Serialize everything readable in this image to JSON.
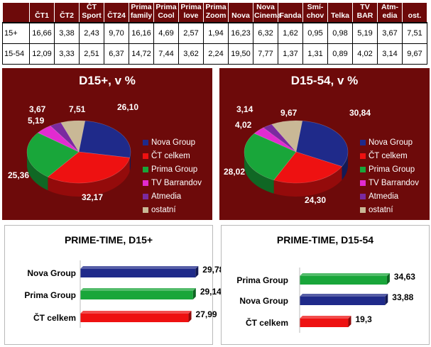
{
  "table": {
    "columns": [
      "ČT1",
      "ČT2",
      "ČT Sport",
      "ČT24",
      "Prima family",
      "Prima Cool",
      "Prima love",
      "Prima Zoom",
      "Nova",
      "Nova Cinema",
      "Fanda",
      "Smí-chov",
      "Telka",
      "TV BAR",
      "Atm-edia",
      "ost."
    ],
    "column_lines": [
      [
        "ČT1"
      ],
      [
        "ČT2"
      ],
      [
        "ČT",
        "Sport"
      ],
      [
        "ČT24"
      ],
      [
        "Prima",
        "family"
      ],
      [
        "Prima",
        "Cool"
      ],
      [
        "Prima",
        "love"
      ],
      [
        "Prima",
        "Zoom"
      ],
      [
        "Nova"
      ],
      [
        "Nova",
        "Cinema"
      ],
      [
        "Fanda"
      ],
      [
        "Smí-",
        "chov"
      ],
      [
        "Telka"
      ],
      [
        "TV",
        "BAR"
      ],
      [
        "Atm-",
        "edia"
      ],
      [
        "ost."
      ]
    ],
    "rows": [
      {
        "label": "15+",
        "values": [
          "16,66",
          "3,38",
          "2,43",
          "9,70",
          "16,16",
          "4,69",
          "2,57",
          "1,94",
          "16,23",
          "6,32",
          "1,62",
          "0,95",
          "0,98",
          "5,19",
          "3,67",
          "7,51"
        ]
      },
      {
        "label": "15-54",
        "values": [
          "12,09",
          "3,33",
          "2,51",
          "6,37",
          "14,72",
          "7,44",
          "3,62",
          "2,24",
          "19,50",
          "7,77",
          "1,37",
          "1,31",
          "0,89",
          "4,02",
          "3,14",
          "9,67"
        ]
      }
    ]
  },
  "colors": {
    "panel_bg": "#6d0a0a",
    "nova": "#1f2a8a",
    "ct": "#ee1111",
    "prima": "#19a63a",
    "barrandov": "#e22bd0",
    "atmedia": "#7a2aa0",
    "ostatni": "#c9b896"
  },
  "chart_data": [
    {
      "type": "pie",
      "title": "D15+, v %",
      "legend": [
        "Nova Group",
        "ČT celkem",
        "Prima Group",
        "TV Barrandov",
        "Atmedia",
        "ostatní"
      ],
      "legend_position": "right",
      "slices": [
        {
          "name": "Nova Group",
          "value": 26.1,
          "label": "26,10"
        },
        {
          "name": "ČT celkem",
          "value": 32.17,
          "label": "32,17"
        },
        {
          "name": "Prima Group",
          "value": 25.36,
          "label": "25,36"
        },
        {
          "name": "TV Barrandov",
          "value": 5.19,
          "label": "5,19"
        },
        {
          "name": "Atmedia",
          "value": 3.67,
          "label": "3,67"
        },
        {
          "name": "ostatní",
          "value": 7.51,
          "label": "7,51"
        }
      ]
    },
    {
      "type": "pie",
      "title": "D15-54, v %",
      "legend": [
        "Nova Group",
        "ČT celkem",
        "Prima Group",
        "TV Barrandov",
        "Atmedia",
        "ostatní"
      ],
      "legend_position": "right",
      "slices": [
        {
          "name": "Nova Group",
          "value": 30.84,
          "label": "30,84"
        },
        {
          "name": "ČT celkem",
          "value": 24.3,
          "label": "24,30"
        },
        {
          "name": "Prima Group",
          "value": 28.02,
          "label": "28,02"
        },
        {
          "name": "TV Barrandov",
          "value": 4.02,
          "label": "4,02"
        },
        {
          "name": "Atmedia",
          "value": 3.14,
          "label": "3,14"
        },
        {
          "name": "ostatní",
          "value": 9.67,
          "label": "9,67"
        }
      ]
    },
    {
      "type": "bar",
      "orientation": "horizontal",
      "title": "PRIME-TIME, D15+",
      "categories": [
        "Nova Group",
        "Prima Group",
        "ČT celkem"
      ],
      "values": [
        29.78,
        29.14,
        27.99
      ],
      "labels": [
        "29,78",
        "29,14",
        "27,99"
      ],
      "xlim": [
        0,
        37
      ]
    },
    {
      "type": "bar",
      "orientation": "horizontal",
      "title": "PRIME-TIME, D15-54",
      "categories": [
        "Prima Group",
        "Nova Group",
        "ČT celkem"
      ],
      "values": [
        34.63,
        33.88,
        19.3
      ],
      "labels": [
        "34,63",
        "33,88",
        "19,3"
      ],
      "xlim": [
        0,
        43
      ]
    }
  ]
}
